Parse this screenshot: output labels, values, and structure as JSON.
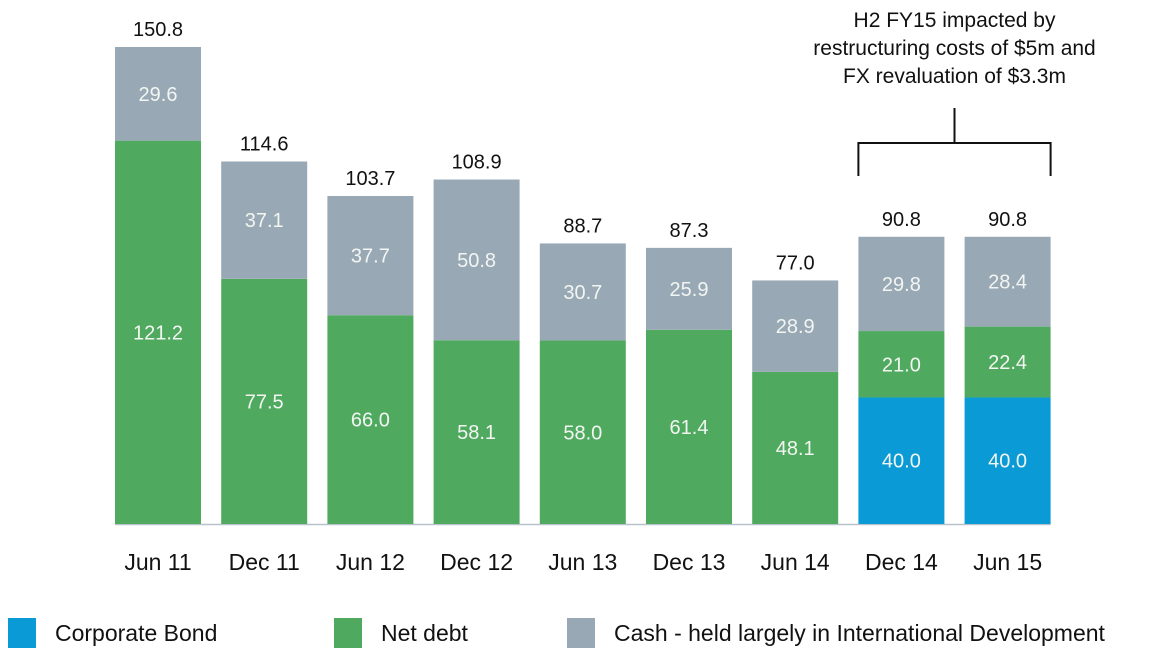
{
  "chart_data": {
    "type": "bar",
    "stacked": true,
    "categories": [
      "Jun 11",
      "Dec 11",
      "Jun 12",
      "Dec 12",
      "Jun 13",
      "Dec 13",
      "Jun 14",
      "Dec 14",
      "Jun 15"
    ],
    "series": [
      {
        "name": "Corporate Bond",
        "color": "#0a9bd6",
        "values": [
          0,
          0,
          0,
          0,
          0,
          0,
          0,
          40.0,
          40.0
        ]
      },
      {
        "name": "Net debt",
        "color": "#4faa5f",
        "values": [
          121.2,
          77.5,
          66.0,
          58.1,
          58.0,
          61.4,
          48.1,
          21.0,
          22.4
        ]
      },
      {
        "name": "Cash - held largely in International Development",
        "color": "#98a9b5",
        "values": [
          29.6,
          37.1,
          37.7,
          50.8,
          30.7,
          25.9,
          28.9,
          29.8,
          28.4
        ]
      }
    ],
    "totals": [
      "150.8",
      "114.6",
      "103.7",
      "108.9",
      "88.7",
      "87.3",
      "77.0",
      "90.8",
      "90.8"
    ],
    "ylim": [
      0,
      150.8
    ],
    "grid": false,
    "legend_position": "bottom",
    "annotation": {
      "lines": [
        "H2 FY15 impacted by",
        "restructuring costs of $5m and",
        "FX revaluation of $3.3m"
      ],
      "applies_to": [
        "Dec 14",
        "Jun 15"
      ]
    }
  }
}
